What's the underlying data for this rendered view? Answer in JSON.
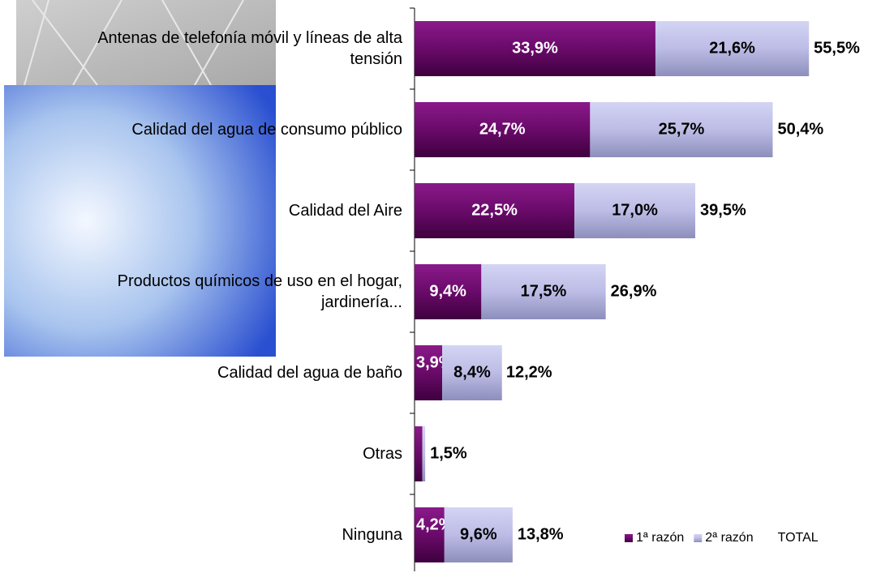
{
  "chart_data": {
    "type": "stacked-barh",
    "categories": [
      "Antenas de telefonía móvil y líneas de alta\ntensión",
      "Calidad del agua de consumo público",
      "Calidad del Aire",
      "Productos químicos de uso en el hogar,\njardinería...",
      "Calidad del agua de baño",
      "Otras",
      "Ninguna"
    ],
    "series": [
      {
        "name": "1ª razón",
        "color": "#5e045e",
        "values": [
          33.9,
          24.7,
          22.5,
          9.4,
          3.9,
          1.1,
          4.2
        ],
        "value_labels": [
          "33,9%",
          "24,7%",
          "22,5%",
          "9,4%",
          "3,9%",
          null,
          "4,2%"
        ]
      },
      {
        "name": "2ª razón",
        "color": "#b4b4e0",
        "values": [
          21.6,
          25.7,
          17.0,
          17.5,
          8.4,
          0.4,
          9.6
        ],
        "value_labels": [
          "21,6%",
          "25,7%",
          "17,0%",
          "17,5%",
          "8,4%",
          null,
          "9,6%"
        ]
      },
      {
        "name": "TOTAL",
        "values": [
          55.5,
          50.4,
          39.5,
          26.9,
          12.2,
          1.5,
          13.8
        ],
        "value_labels": [
          "55,5%",
          "50,4%",
          "39,5%",
          "26,9%",
          "12,2%",
          "1,5%",
          "13,8%"
        ]
      }
    ]
  }
}
